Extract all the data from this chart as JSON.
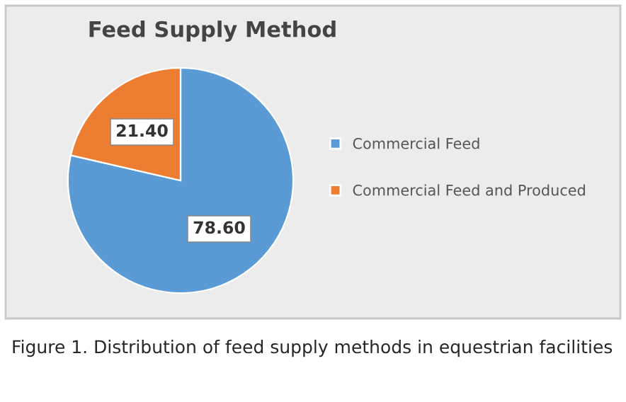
{
  "chart_data": {
    "type": "pie",
    "title": "Feed Supply Method",
    "categories": [
      "Commercial Feed",
      "Commercial Feed and Produced"
    ],
    "values": [
      78.6,
      21.4
    ],
    "colors": [
      "#5b9bd5",
      "#ed7d31"
    ],
    "value_labels": [
      "78.60",
      "21.40"
    ],
    "legend": "right",
    "annotations": [
      "Figure 1. Distribution of feed supply methods in equestrian facilities"
    ]
  }
}
